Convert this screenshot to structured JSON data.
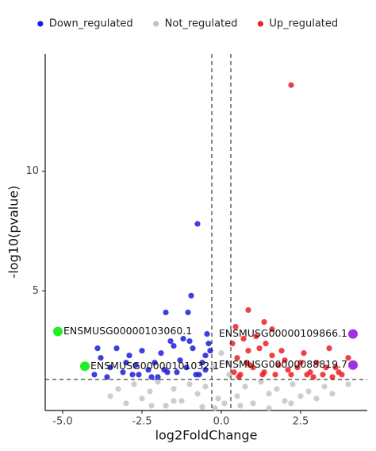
{
  "chart_data": {
    "type": "scatter",
    "xlabel": "log2FoldChange",
    "ylabel": "-log10(pvalue)",
    "xlim": [
      -5.55,
      4.6
    ],
    "ylim": [
      0,
      14.9
    ],
    "xticks": [
      {
        "value": -5,
        "label": "-5.0"
      },
      -2.5,
      {
        "value": 0,
        "label": "0.0"
      },
      2.5
    ],
    "yticks": [
      5,
      10
    ],
    "grid": false,
    "legend": "top",
    "vlines": [
      -0.3,
      0.3
    ],
    "hline": 1.3,
    "series": [
      {
        "name": "Not_regulated",
        "color": "#c4c4c4",
        "x": [
          -3.5,
          -3.25,
          -3.0,
          -2.75,
          -2.5,
          -2.25,
          -2.0,
          -1.75,
          -1.5,
          -1.25,
          -1.0,
          -0.75,
          -0.5,
          -0.25,
          0,
          0.25,
          0.5,
          0.75,
          1.0,
          1.25,
          1.5,
          1.75,
          2.0,
          2.25,
          2.5,
          2.75,
          3.0,
          3.25,
          3.5,
          -0.2,
          0.1,
          -0.1,
          0.2,
          -0.6,
          0.6,
          -1.5,
          1.5,
          -2.2,
          2.2,
          4.0
        ],
        "y": [
          0.6,
          0.9,
          0.3,
          1.1,
          0.5,
          0.8,
          1.2,
          0.2,
          0.9,
          0.4,
          1.1,
          0.7,
          1.0,
          1.8,
          2.4,
          1.5,
          0.6,
          1.0,
          0.3,
          1.2,
          0.7,
          0.9,
          0.4,
          1.1,
          0.6,
          0.8,
          0.5,
          1.0,
          0.7,
          0.1,
          0.3,
          0.5,
          2.0,
          0.15,
          0.2,
          0.4,
          0.1,
          0.2,
          0.3,
          1.1
        ]
      },
      {
        "name": "Down_regulated",
        "color": "#1c1cdc",
        "x": [
          -4.0,
          -3.8,
          -3.5,
          -3.3,
          -3.1,
          -2.9,
          -2.7,
          -2.5,
          -2.3,
          -2.1,
          -1.9,
          -1.7,
          -1.5,
          -1.3,
          -1.1,
          -0.9,
          -0.7,
          -0.5,
          -0.4,
          -3.6,
          -3.0,
          -2.6,
          -2.2,
          -1.8,
          -1.4,
          -1.0,
          -0.6,
          -0.35,
          -2.0,
          -1.2,
          -0.8,
          -0.5,
          -0.75,
          -0.95,
          -1.75,
          -1.05,
          -1.6,
          -2.8,
          -3.9,
          -0.45
        ],
        "y": [
          1.5,
          2.2,
          1.8,
          2.6,
          1.6,
          2.3,
          1.9,
          2.5,
          1.7,
          2.0,
          2.4,
          1.6,
          2.7,
          2.1,
          1.8,
          2.6,
          1.5,
          2.3,
          2.8,
          1.4,
          2.0,
          1.5,
          1.4,
          1.7,
          1.6,
          2.9,
          2.0,
          2.5,
          1.4,
          3.0,
          1.5,
          1.7,
          7.8,
          4.8,
          4.1,
          4.1,
          2.9,
          1.5,
          2.6,
          3.2
        ]
      },
      {
        "name": "Up_regulated",
        "color": "#ec2020",
        "x": [
          0.35,
          0.5,
          0.7,
          0.85,
          1.0,
          1.2,
          1.35,
          1.6,
          1.8,
          2.0,
          2.2,
          2.4,
          2.6,
          2.8,
          3.0,
          3.2,
          3.4,
          3.6,
          3.8,
          4.0,
          0.4,
          0.6,
          0.9,
          1.1,
          1.4,
          1.7,
          2.1,
          2.5,
          2.9,
          3.3,
          3.7,
          0.45,
          0.8,
          1.3,
          1.9,
          2.7,
          3.5,
          2.2,
          0.85,
          1.35,
          1.6,
          0.55
        ],
        "y": [
          2.8,
          2.2,
          3.0,
          2.5,
          1.8,
          2.6,
          1.6,
          2.3,
          1.9,
          2.1,
          1.5,
          1.8,
          2.4,
          1.6,
          2.0,
          1.5,
          2.6,
          1.8,
          1.5,
          2.2,
          1.6,
          1.5,
          1.9,
          3.1,
          2.8,
          1.5,
          1.7,
          2.0,
          1.4,
          1.8,
          1.6,
          3.5,
          2.0,
          1.5,
          2.5,
          1.5,
          1.4,
          13.6,
          4.2,
          3.7,
          3.4,
          1.4
        ]
      }
    ],
    "highlights": [
      {
        "label": "ENSMUSG00000103060.1",
        "color": "#22ee22",
        "x": -5.15,
        "y": 3.3,
        "side": "right"
      },
      {
        "label": "ENSMUSG00000109866.1",
        "color": "#a030e0",
        "x": 4.15,
        "y": 3.2,
        "side": "left"
      },
      {
        "label": "ENSMUSG00000101032.1",
        "color": "#22ee22",
        "x": -4.3,
        "y": 1.85,
        "side": "right"
      },
      {
        "label": "ENSMUSG00000088819.7",
        "color": "#a030e0",
        "x": 4.15,
        "y": 1.9,
        "side": "left"
      }
    ]
  }
}
